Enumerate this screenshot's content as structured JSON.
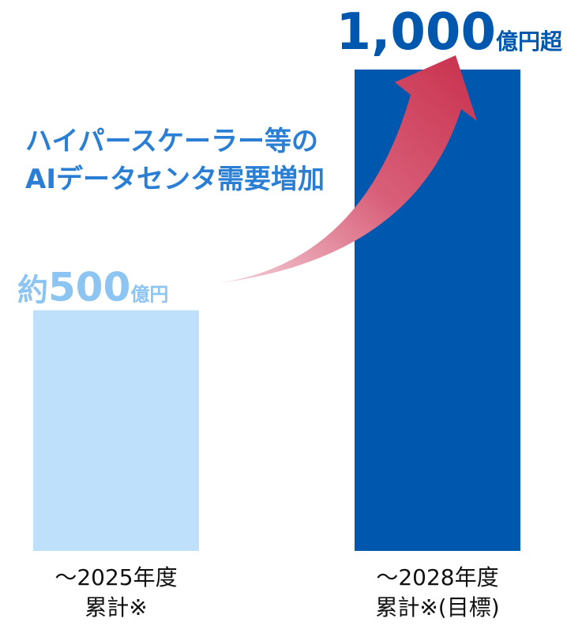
{
  "chart_data": {
    "type": "bar",
    "categories": [
      [
        "～2025年度",
        "累計※"
      ],
      [
        "～2028年度",
        "累計※(目標)"
      ]
    ],
    "values": [
      500,
      1000
    ],
    "value_labels": [
      "約500億円",
      "1,000億円超"
    ],
    "colors": [
      "#bfe0fb",
      "#0057ae"
    ],
    "label_colors": [
      "#8cc4f2",
      "#0057ae"
    ],
    "annotation": [
      "ハイパースケーラー等の",
      "AIデータセンタ需要増加"
    ],
    "ylim": [
      0,
      1000
    ]
  }
}
